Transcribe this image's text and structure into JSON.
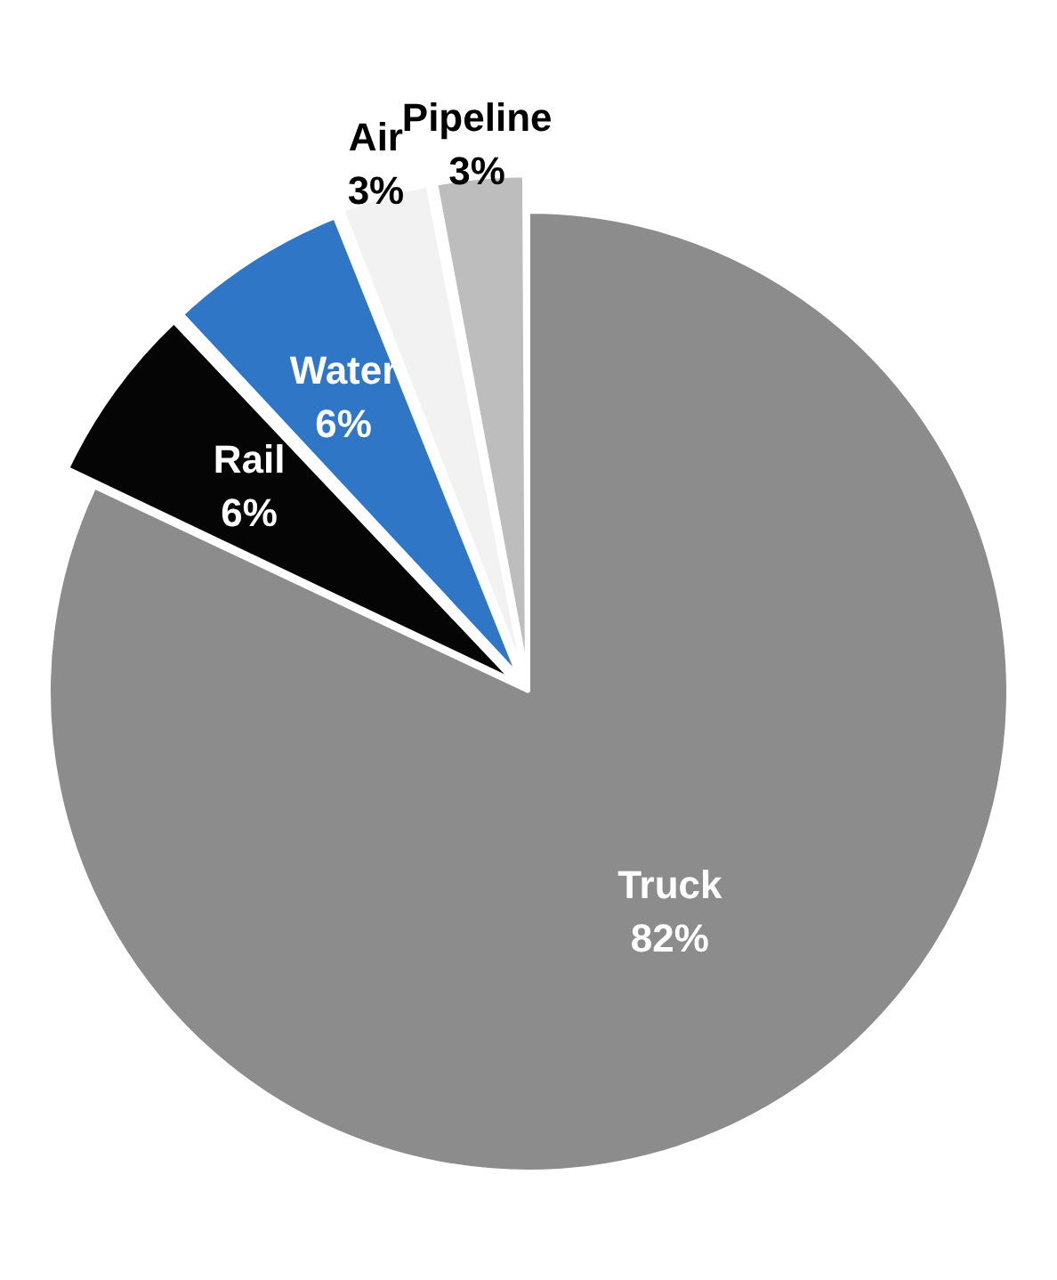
{
  "chart_data": {
    "type": "pie",
    "categories": [
      "Truck",
      "Rail",
      "Water",
      "Air",
      "Pipeline"
    ],
    "values": [
      82,
      6,
      6,
      3,
      3
    ],
    "value_labels": [
      "82%",
      "6%",
      "6%",
      "3%",
      "3%"
    ],
    "colors": [
      "#8c8c8c",
      "#050505",
      "#2f76c6",
      "#f2f2f2",
      "#bdbdbd"
    ],
    "legend": false
  }
}
